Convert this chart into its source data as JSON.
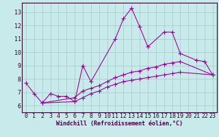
{
  "background_color": "#c8eaea",
  "grid_color": "#a0c8c8",
  "line_color": "#990099",
  "marker": "+",
  "markersize": 4,
  "linewidth": 0.8,
  "xlabel": "Windchill (Refroidissement éolien,°C)",
  "xlabel_fontsize": 6.0,
  "tick_fontsize": 6.0,
  "xlim": [
    -0.5,
    23.5
  ],
  "ylim": [
    5.5,
    13.7
  ],
  "yticks": [
    6,
    7,
    8,
    9,
    10,
    11,
    12,
    13
  ],
  "xticks": [
    0,
    1,
    2,
    3,
    4,
    5,
    6,
    7,
    8,
    9,
    10,
    11,
    12,
    13,
    14,
    15,
    16,
    17,
    18,
    19,
    20,
    21,
    22,
    23
  ],
  "series": [
    {
      "x": [
        0,
        1,
        2,
        3,
        4,
        5,
        6,
        7,
        8,
        11,
        12,
        13,
        14,
        15,
        17,
        18,
        19,
        21,
        22,
        23
      ],
      "y": [
        7.7,
        6.9,
        6.2,
        6.9,
        6.7,
        6.7,
        6.3,
        9.0,
        7.8,
        11.0,
        12.5,
        13.3,
        11.9,
        10.4,
        11.5,
        11.5,
        9.9,
        9.4,
        9.3,
        8.3
      ]
    },
    {
      "x": [
        2,
        6,
        7,
        8,
        9,
        10,
        11,
        12,
        13,
        14,
        15,
        16,
        17,
        18,
        19,
        23
      ],
      "y": [
        6.2,
        6.6,
        7.1,
        7.3,
        7.5,
        7.8,
        8.1,
        8.3,
        8.5,
        8.6,
        8.8,
        8.9,
        9.1,
        9.2,
        9.3,
        8.3
      ]
    },
    {
      "x": [
        2,
        6,
        7,
        8,
        9,
        10,
        11,
        12,
        13,
        14,
        15,
        16,
        17,
        18,
        19,
        23
      ],
      "y": [
        6.2,
        6.3,
        6.6,
        6.9,
        7.1,
        7.4,
        7.6,
        7.8,
        7.9,
        8.0,
        8.1,
        8.2,
        8.3,
        8.4,
        8.5,
        8.3
      ]
    }
  ]
}
